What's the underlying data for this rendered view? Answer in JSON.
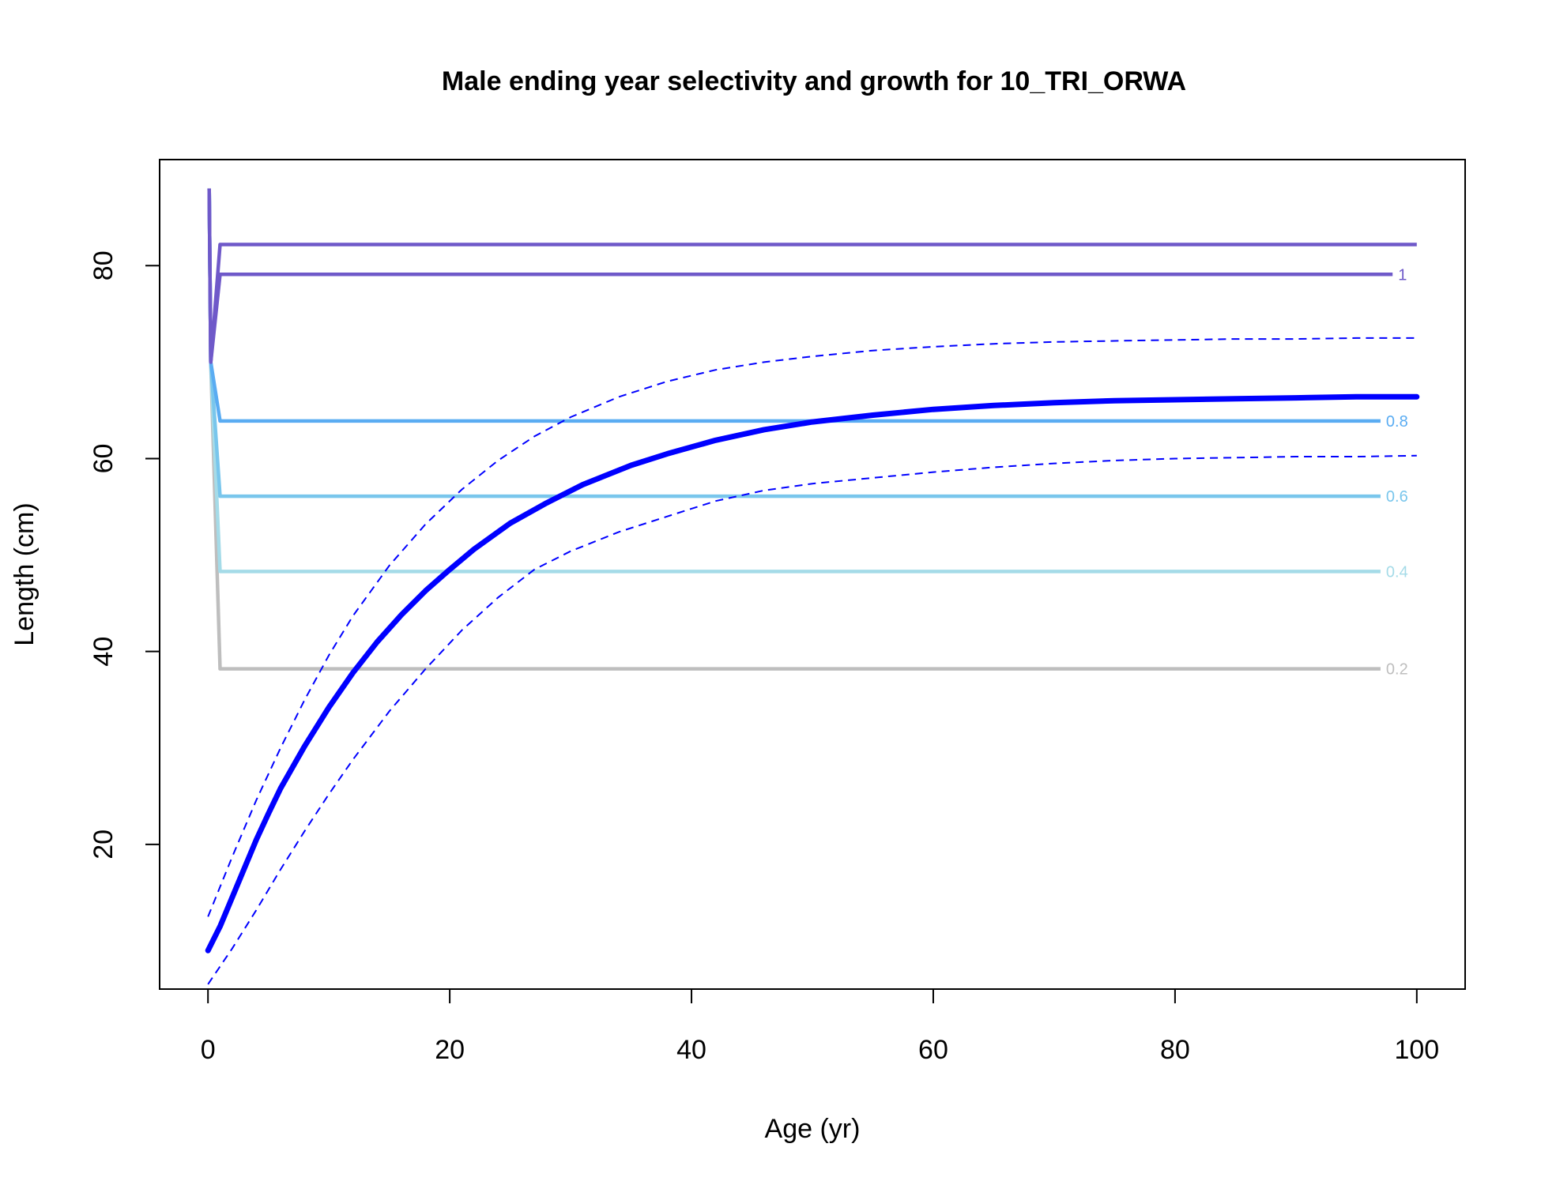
{
  "chart_data": {
    "type": "line",
    "title": "Male ending year selectivity and growth for 10_TRI_ORWA",
    "xlabel": "Age (yr)",
    "ylabel": "Length (cm)",
    "xlim": [
      -4,
      104
    ],
    "ylim": [
      5,
      91
    ],
    "x_ticks": [
      0,
      20,
      40,
      60,
      80,
      100
    ],
    "y_ticks": [
      20,
      40,
      60,
      80
    ],
    "x_tick_labels": [
      "0",
      "20",
      "40",
      "60",
      "80",
      "100"
    ],
    "y_tick_labels": [
      "20",
      "40",
      "60",
      "80"
    ],
    "grid": false,
    "legend": "none",
    "growth": {
      "color": "#0000ff",
      "mean": {
        "x": [
          0,
          1,
          2,
          3,
          4,
          5,
          6,
          8,
          10,
          12,
          14,
          16,
          18,
          20,
          22,
          25,
          28,
          31,
          35,
          38,
          42,
          46,
          50,
          55,
          60,
          65,
          70,
          75,
          80,
          85,
          90,
          95,
          100
        ],
        "y": [
          9,
          11.5,
          14.5,
          17.5,
          20.5,
          23.2,
          25.8,
          30.2,
          34.2,
          37.8,
          41.0,
          43.8,
          46.3,
          48.5,
          50.6,
          53.3,
          55.4,
          57.3,
          59.3,
          60.5,
          61.9,
          63.0,
          63.8,
          64.5,
          65.1,
          65.5,
          65.8,
          66.0,
          66.1,
          66.2,
          66.3,
          66.4,
          66.4
        ]
      },
      "upper": {
        "x": [
          0,
          2,
          4,
          6,
          8,
          10,
          12,
          15,
          18,
          21,
          24,
          27,
          30,
          34,
          38,
          42,
          46,
          50,
          55,
          60,
          65,
          70,
          75,
          80,
          85,
          90,
          95,
          100
        ],
        "y": [
          12.5,
          18.7,
          24.6,
          30.0,
          35.0,
          39.6,
          43.7,
          48.9,
          53.2,
          56.8,
          59.8,
          62.3,
          64.3,
          66.4,
          68.0,
          69.2,
          70.0,
          70.6,
          71.2,
          71.6,
          71.9,
          72.1,
          72.2,
          72.3,
          72.4,
          72.4,
          72.5,
          72.5
        ]
      },
      "lower": {
        "x": [
          0,
          2,
          4,
          6,
          8,
          10,
          12,
          15,
          18,
          21,
          24,
          27,
          30,
          34,
          38,
          42,
          46,
          50,
          55,
          60,
          65,
          70,
          75,
          80,
          85,
          90,
          95,
          100
        ],
        "y": [
          5.5,
          9.2,
          13.2,
          17.4,
          21.4,
          25.2,
          28.8,
          33.8,
          38.2,
          42.2,
          45.6,
          48.5,
          50.4,
          52.4,
          54.0,
          55.6,
          56.7,
          57.4,
          58.0,
          58.6,
          59.1,
          59.5,
          59.8,
          60.0,
          60.1,
          60.2,
          60.2,
          60.3
        ]
      }
    },
    "selectivity_contours": [
      {
        "level": "0.2",
        "color": "#bebebe",
        "y_end": 38.2,
        "x_end": 97
      },
      {
        "level": "0.4",
        "color": "#a5dbe8",
        "y_end": 48.3,
        "x_end": 97
      },
      {
        "level": "0.6",
        "color": "#79c6ec",
        "y_end": 56.1,
        "x_end": 97
      },
      {
        "level": "0.8",
        "color": "#5aacf2",
        "y_end": 63.9,
        "x_end": 97
      },
      {
        "level": "1",
        "color": "#6f59c9",
        "y_end": 79.1,
        "x_end": 98
      },
      {
        "level": "",
        "color": "#6f59c9",
        "y_end": 82.2,
        "x_end": 100
      }
    ]
  }
}
